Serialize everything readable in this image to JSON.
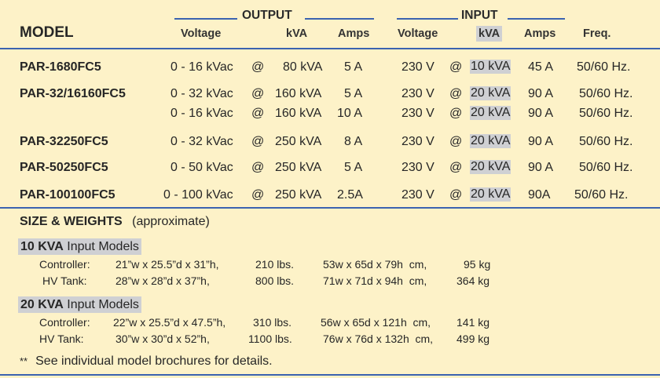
{
  "header": {
    "output_label": "OUTPUT",
    "input_label": "INPUT",
    "model_label": "MODEL",
    "cols": {
      "out_voltage": "Voltage",
      "out_kva": "kVA",
      "out_amps": "Amps",
      "in_voltage": "Voltage",
      "in_kva": "kVA",
      "in_amps": "Amps",
      "freq": "Freq."
    }
  },
  "rows": [
    {
      "model": "PAR-1680FC5",
      "out_v": "0 - 16 kVac",
      "at1": "@",
      "out_kva": "80 kVA",
      "out_a": "5 A",
      "in_v": "230 V",
      "at2": "@",
      "in_kva": "10 kVA",
      "in_a": "45 A",
      "freq": "50/60 Hz."
    },
    {
      "model": "PAR-32/16160FC5",
      "out_v": "0 - 32 kVac",
      "at1": "@",
      "out_kva": "160 kVA",
      "out_a": "5 A",
      "in_v": "230 V",
      "at2": "@",
      "in_kva": "20 kVA",
      "in_a": "90 A",
      "freq": "50/60 Hz."
    },
    {
      "model": "",
      "out_v": "0 - 16 kVac",
      "at1": "@",
      "out_kva": "160 kVA",
      "out_a": "10 A",
      "in_v": "230 V",
      "at2": "@",
      "in_kva": "20 kVA",
      "in_a": "90 A",
      "freq": "50/60 Hz."
    },
    {
      "model": "PAR-32250FC5",
      "out_v": "0 - 32 kVac",
      "at1": "@",
      "out_kva": "250 kVA",
      "out_a": "8 A",
      "in_v": "230 V",
      "at2": "@",
      "in_kva": "20 kVA",
      "in_a": "90 A",
      "freq": "50/60 Hz."
    },
    {
      "model": "PAR-50250FC5",
      "out_v": "0 - 50 kVac",
      "at1": "@",
      "out_kva": "250 kVA",
      "out_a": "5 A",
      "in_v": "230 V",
      "at2": "@",
      "in_kva": "20 kVA",
      "in_a": "90 A",
      "freq": "50/60 Hz."
    },
    {
      "model": "PAR-100100FC5",
      "out_v": "0 - 100 kVac",
      "at1": "@",
      "out_kva": "250 kVA",
      "out_a": "2.5A",
      "in_v": "230 V",
      "at2": "@",
      "in_kva": "20 kVA",
      "in_a": "90A",
      "freq": "50/60 Hz."
    }
  ],
  "sizes": {
    "title_bold": "SIZE & WEIGHTS",
    "title_note": "(approximate)",
    "groups": [
      {
        "label_bold": "10 KVA",
        "label_rest": " Input Models",
        "items": [
          {
            "name": "Controller:",
            "dims_in": "21”w x 25.5”d x 31”h,",
            "lbs": "210 lbs.",
            "dims_cm": "53w x 65d x 79h  cm,",
            "kg": "95 kg"
          },
          {
            "name": "HV Tank:",
            "dims_in": "28”w x 28”d x 37”h,",
            "lbs": "800 lbs.",
            "dims_cm": "71w x 71d x 94h  cm,",
            "kg": "364 kg"
          }
        ]
      },
      {
        "label_bold": "20 KVA",
        "label_rest": " Input Models",
        "items": [
          {
            "name": "Controller:",
            "dims_in": "22”w x 25.5”d x 47.5”h,",
            "lbs": "310 lbs.",
            "dims_cm": "56w x 65d x 121h  cm,",
            "kg": "141 kg"
          },
          {
            "name": "HV Tank:",
            "dims_in": "30”w x 30”d x 52”h,",
            "lbs": "1100 lbs.",
            "dims_cm": "76w x 76d x 132h  cm,",
            "kg": "499 kg"
          }
        ]
      }
    ],
    "footnote_mark": "**",
    "footnote": "See individual model brochures for details."
  },
  "colors": {
    "background": "#fdf2c8",
    "rule": "#3b63b0",
    "highlight": "#cfd0d3"
  }
}
